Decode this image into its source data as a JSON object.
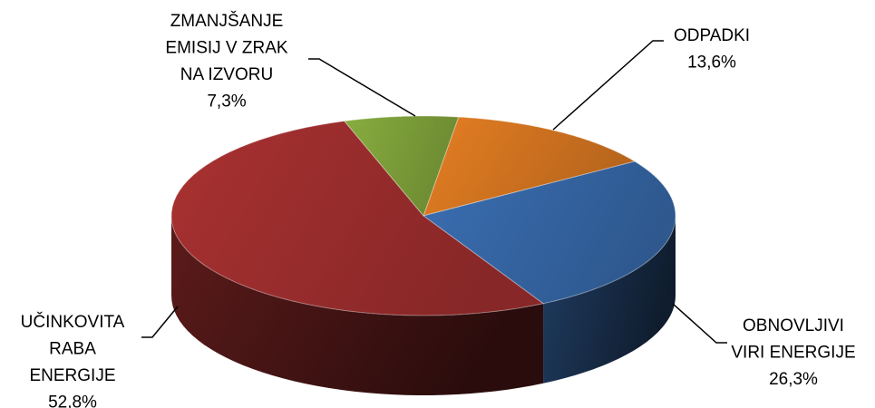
{
  "chart_data": {
    "type": "pie",
    "categories": [
      "ODPADKI",
      "OBNOVLJIVI VIRI ENERGIJE",
      "UČINKOVITA RABA ENERGIJE",
      "ZMANJŠANJE EMISIJ V ZRAK NA IZVORU"
    ],
    "values": [
      13.6,
      26.3,
      52.8,
      7.3
    ],
    "value_labels": [
      "13,6%",
      "26,3%",
      "52,8%",
      "7,3%"
    ],
    "colors": [
      "#e57e23",
      "#3a6eb2",
      "#a93131",
      "#88ad3f"
    ]
  }
}
